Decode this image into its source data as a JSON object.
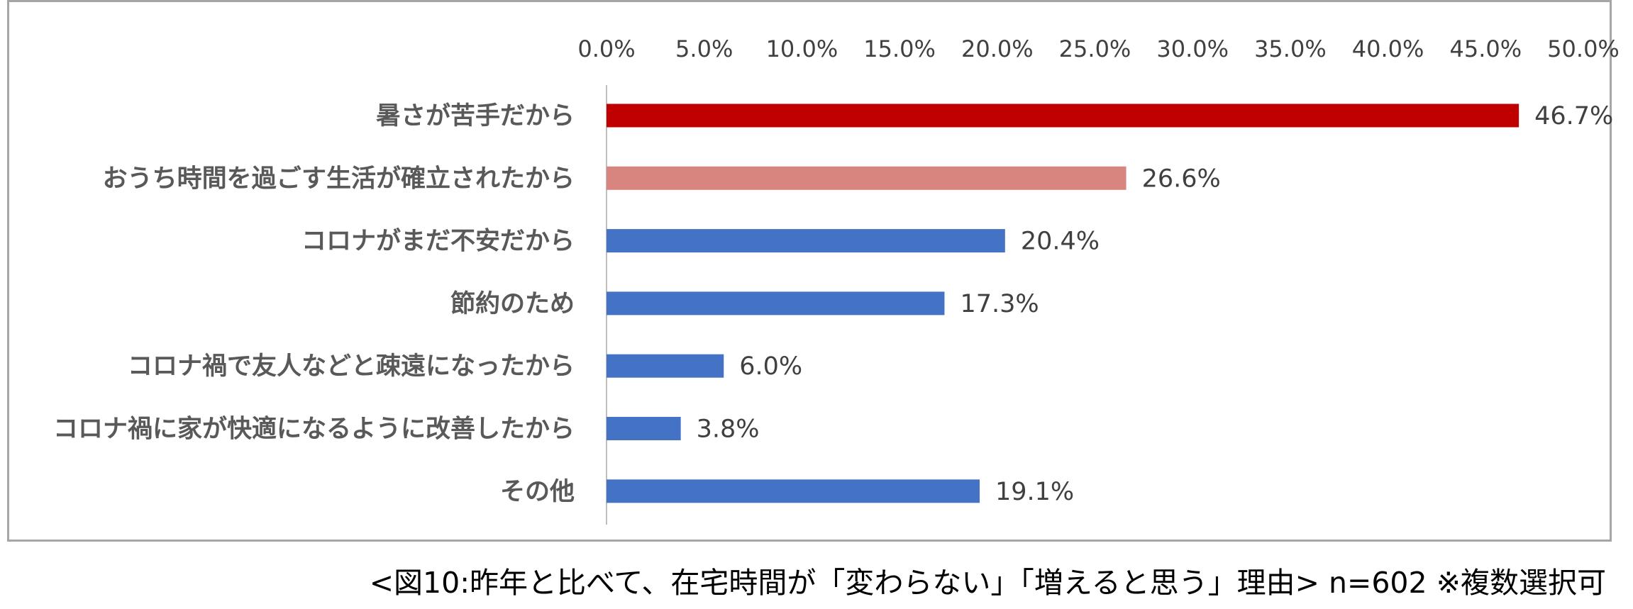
{
  "chart_data": {
    "type": "bar",
    "orientation": "horizontal",
    "categories": [
      "暑さが苦手だから",
      "おうち時間を過ごす生活が確立されたから",
      "コロナがまだ不安だから",
      "節約のため",
      "コロナ禍で友人などと疎遠になったから",
      "コロナ禍に家が快適になるように改善したから",
      "その他"
    ],
    "values": [
      46.7,
      26.6,
      20.4,
      17.3,
      6.0,
      3.8,
      19.1
    ],
    "data_labels": [
      "46.7%",
      "26.6%",
      "20.4%",
      "17.3%",
      "6.0%",
      "3.8%",
      "19.1%"
    ],
    "bar_colors": [
      "#c00000",
      "#d9857f",
      "#4472c4",
      "#4472c4",
      "#4472c4",
      "#4472c4",
      "#4472c4"
    ],
    "xlim": [
      0,
      50
    ],
    "x_ticks": [
      0,
      5,
      10,
      15,
      20,
      25,
      30,
      35,
      40,
      45,
      50
    ],
    "x_tick_labels": [
      "0.0%",
      "5.0%",
      "10.0%",
      "15.0%",
      "20.0%",
      "25.0%",
      "30.0%",
      "35.0%",
      "40.0%",
      "45.0%",
      "50.0%"
    ],
    "x_axis_position": "top",
    "grid": false,
    "legend": "none",
    "title": "",
    "xlabel": "",
    "ylabel": ""
  },
  "caption": "<図10:昨年と比べて、在宅時間が「変わらない」「増えると思う」理由> n=602 ※複数選択可",
  "colors": {
    "axis_line": "#bfbfbf",
    "frame_border": "#a6a6a6",
    "category_text": "#595959",
    "tick_text": "#404040",
    "value_text": "#404040"
  }
}
